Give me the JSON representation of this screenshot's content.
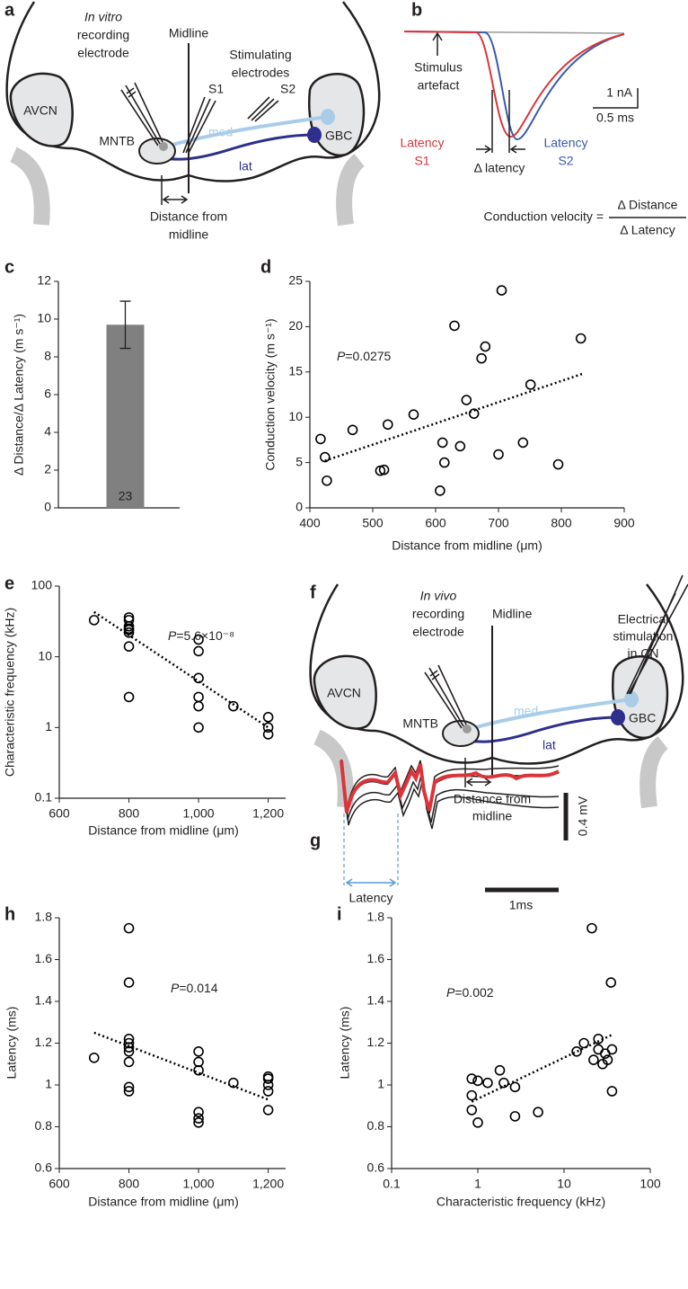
{
  "diagrams": {
    "a": {
      "label": "a",
      "recording_electrode": [
        "In vitro",
        "recording",
        "electrode"
      ],
      "midline": "Midline",
      "stimulating_electrodes": [
        "Stimulating",
        "electrodes"
      ],
      "s1": "S1",
      "s2": "S2",
      "avcn": "AVCN",
      "mntb": "MNTB",
      "med": "med",
      "lat": "lat",
      "gbc": "GBC",
      "distance": [
        "Distance from",
        "midline"
      ]
    },
    "b": {
      "label": "b",
      "stimulus_artefact": [
        "Stimulus",
        "artefact"
      ],
      "current_scale": "1 nA",
      "time_scale": "0.5 ms",
      "latency_s1": [
        "Latency",
        "S1"
      ],
      "delta_latency": "Δ latency",
      "latency_s2": [
        "Latency",
        "S2"
      ],
      "formula": "Conduction velocity =",
      "numerator": "Δ Distance",
      "denominator": "Δ Latency"
    },
    "f": {
      "label": "f",
      "recording_electrode": [
        "In vivo",
        "recording",
        "electrode"
      ],
      "midline": "Midline",
      "stimulation": [
        "Electrical",
        "stimulation",
        "in CN"
      ],
      "avcn": "AVCN",
      "mntb": "MNTB",
      "med": "med",
      "lat": "lat",
      "gbc": "GBC",
      "distance": [
        "Distance from",
        "midline"
      ]
    },
    "g": {
      "label": "g",
      "latency": "Latency",
      "voltage_scale": "0.4 mV",
      "time_scale": "1ms"
    }
  },
  "chart_data": [
    {
      "type": "bar",
      "panel": "c",
      "ylabel": "Δ Distance/Δ Latency (m s⁻¹)",
      "categories": [
        null
      ],
      "values": [
        9.7
      ],
      "errors": [
        1.25
      ],
      "bar_labels": [
        "23"
      ],
      "color": "#808080",
      "ylim": [
        0,
        12
      ],
      "yticks": [
        0,
        2,
        4,
        6,
        8,
        10,
        12
      ]
    },
    {
      "type": "scatter",
      "panel": "d",
      "xlabel": "Distance from midline (μm)",
      "ylabel": "Conduction velocity (m s⁻¹)",
      "annotation": {
        "symbol": "P",
        "text": "=0.0275"
      },
      "color": "#000000",
      "x": [
        417,
        424,
        427,
        468,
        512,
        518,
        524,
        565,
        630,
        607,
        611,
        614,
        639,
        649,
        661,
        673,
        679,
        705,
        700,
        739,
        751,
        795,
        831
      ],
      "values": [
        7.6,
        5.6,
        3.0,
        8.6,
        4.1,
        4.2,
        9.2,
        10.3,
        20.1,
        1.9,
        7.2,
        5.0,
        6.8,
        11.9,
        10.4,
        16.5,
        17.8,
        24.0,
        5.9,
        7.2,
        13.6,
        4.8,
        18.7
      ],
      "trend": {
        "x": [
          424,
          834
        ],
        "values": [
          5.2,
          14.8
        ]
      },
      "xlim": [
        400,
        900
      ],
      "xticks": [
        400,
        500,
        600,
        700,
        800,
        900
      ],
      "ylim": [
        0,
        25
      ],
      "yticks": [
        0,
        5,
        10,
        15,
        20,
        25
      ]
    },
    {
      "type": "scatter",
      "panel": "e",
      "xlabel": "Distance from midline (μm)",
      "ylabel": "Characteristic frequency (kHz)",
      "annotation": {
        "symbol": "P",
        "text": "=5.6×10⁻⁸"
      },
      "color": "#000000",
      "yscale": "log",
      "x": [
        700,
        800,
        800,
        800,
        800,
        800,
        800,
        800,
        800,
        1000,
        1000,
        1000,
        1000,
        1000,
        1000,
        1100,
        1200,
        1200,
        1200
      ],
      "values": [
        33,
        36,
        33,
        27,
        25,
        24,
        22,
        14,
        2.7,
        17.5,
        12,
        5,
        2.7,
        2,
        1,
        2,
        1.4,
        1,
        0.8
      ],
      "trend": {
        "x": [
          700,
          1200
        ],
        "values": [
          43,
          1.0
        ]
      },
      "xlim": [
        600,
        1250
      ],
      "xticks": [
        600,
        800,
        {
          "value": 1000,
          "label": "1,000"
        },
        {
          "value": 1200,
          "label": "1,200"
        }
      ],
      "ylim": [
        0.1,
        100
      ],
      "yticks": [
        0.1,
        1,
        10,
        100
      ]
    },
    {
      "type": "scatter",
      "panel": "h",
      "xlabel": "Distance from midline (μm)",
      "ylabel": "Latency (ms)",
      "annotation": {
        "symbol": "P",
        "text": "=0.014"
      },
      "color": "#000000",
      "x": [
        700,
        800,
        800,
        800,
        800,
        800,
        800,
        800,
        800,
        800,
        1000,
        1000,
        1000,
        1000,
        1000,
        1000,
        1100,
        1200,
        1200,
        1200,
        1200,
        1200
      ],
      "values": [
        1.13,
        1.75,
        1.49,
        1.22,
        1.2,
        1.18,
        1.16,
        1.11,
        0.99,
        0.97,
        1.16,
        1.11,
        1.07,
        0.87,
        0.84,
        0.82,
        1.01,
        1.04,
        1.03,
        1.0,
        0.97,
        0.88
      ],
      "trend": {
        "x": [
          700,
          1200
        ],
        "values": [
          1.25,
          0.93
        ]
      },
      "xlim": [
        600,
        1250
      ],
      "xticks": [
        600,
        800,
        {
          "value": 1000,
          "label": "1,000"
        },
        {
          "value": 1200,
          "label": "1,200"
        }
      ],
      "ylim": [
        0.6,
        1.8
      ],
      "yticks": [
        0.6,
        0.8,
        1,
        1.2,
        1.4,
        1.6,
        1.8
      ]
    },
    {
      "type": "scatter",
      "panel": "i",
      "xlabel": "Characteristic frequency (kHz)",
      "ylabel": "Latency (ms)",
      "annotation": {
        "symbol": "P",
        "text": "=0.002"
      },
      "color": "#000000",
      "xscale": "log",
      "x": [
        0.85,
        0.85,
        0.85,
        1,
        1,
        1.3,
        1.8,
        2,
        2.7,
        2.7,
        5,
        14,
        17,
        21,
        22,
        25,
        25,
        28,
        30,
        32,
        35,
        36,
        36
      ],
      "values": [
        1.03,
        0.95,
        0.88,
        1.02,
        0.82,
        1.01,
        1.07,
        1.01,
        0.99,
        0.85,
        0.87,
        1.16,
        1.2,
        1.75,
        1.12,
        1.22,
        1.17,
        1.1,
        1.15,
        1.12,
        1.49,
        0.97,
        1.17
      ],
      "trend": {
        "x": [
          0.85,
          36
        ],
        "values": [
          0.92,
          1.24
        ]
      },
      "xlim": [
        0.1,
        100
      ],
      "xticks": [
        0.1,
        1,
        10,
        100
      ],
      "ylim": [
        0.6,
        1.8
      ],
      "yticks": [
        0.6,
        0.8,
        1,
        1.2,
        1.4,
        1.6,
        1.8
      ]
    }
  ]
}
